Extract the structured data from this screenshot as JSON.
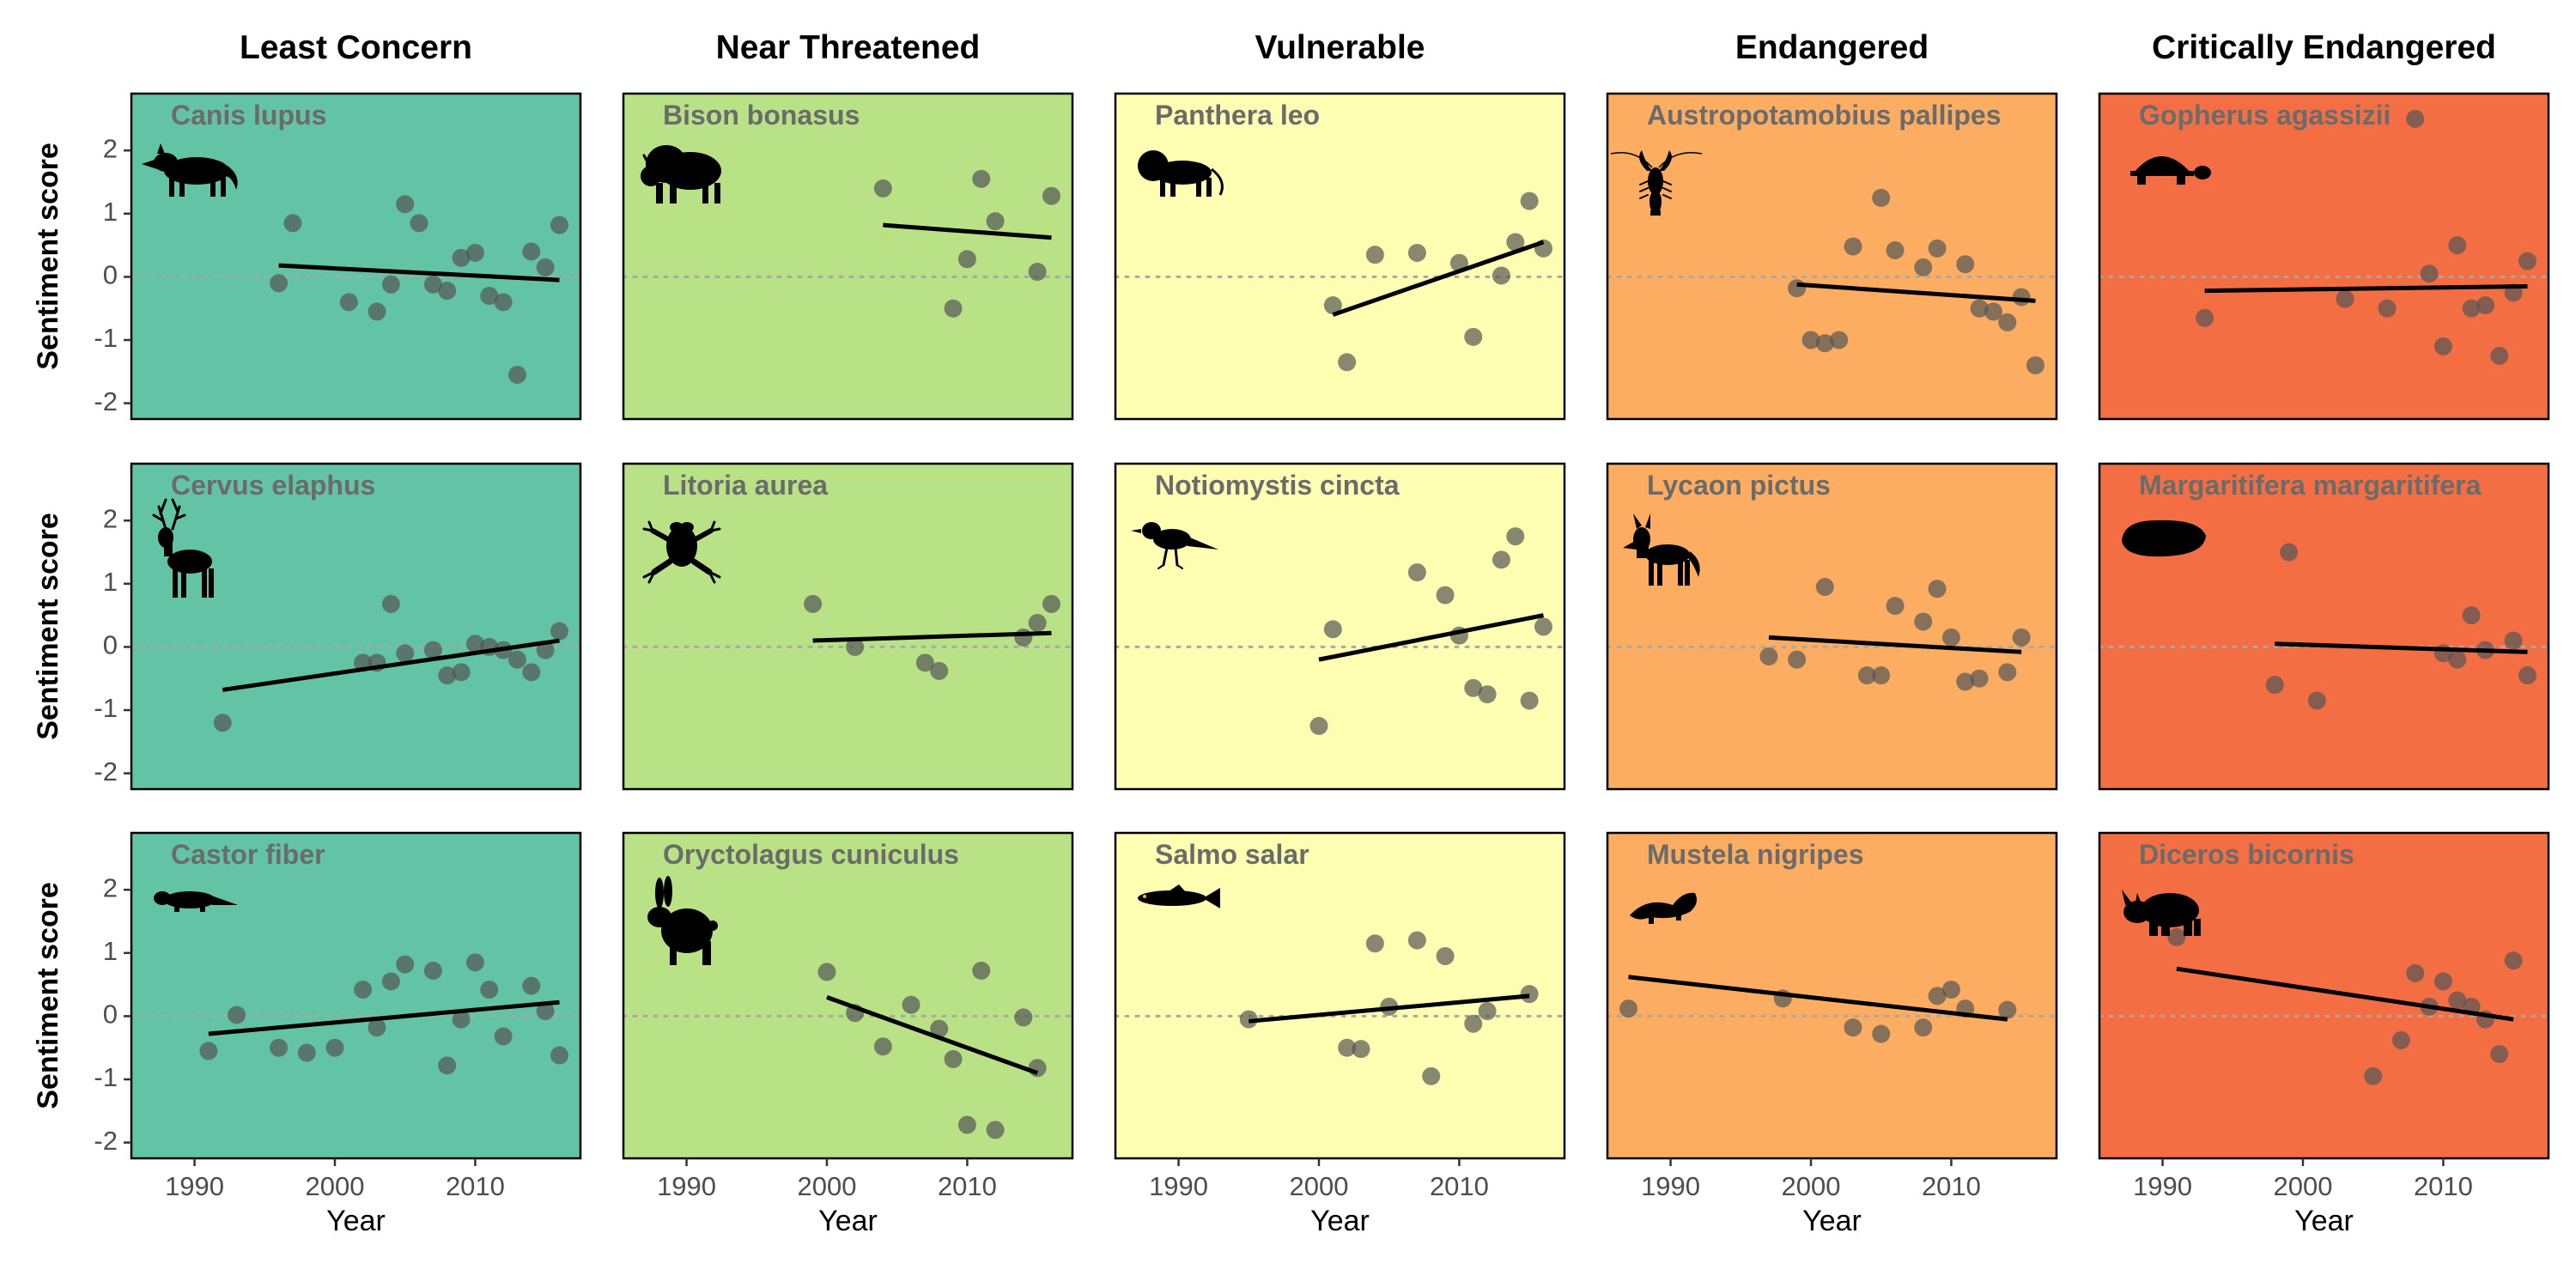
{
  "figure": {
    "ylabel": "Sentiment score",
    "xlabel": "Year",
    "columns": [
      "Least Concern",
      "Near Threatened",
      "Vulnerable",
      "Endangered",
      "Critically Endangered"
    ],
    "column_colors": [
      "#63c3a5",
      "#b9e286",
      "#feffb3",
      "#fcad62",
      "#f46e44"
    ],
    "xlim": [
      1985.5,
      2017.5
    ],
    "ylim": [
      -2.25,
      2.9
    ],
    "xticks": [
      1990,
      2000,
      2010
    ],
    "yticks": [
      -2,
      -1,
      0,
      1,
      2
    ],
    "reference_line_y": 0,
    "point_color": "#555555",
    "trend_color": "#000000"
  },
  "chart_data": [
    {
      "type": "scatter",
      "species": "Canis lupus",
      "status": "Least Concern",
      "icon": "wolf-icon",
      "x": [
        1996,
        1997,
        2001,
        2003,
        2004,
        2005,
        2006,
        2007,
        2008,
        2009,
        2010,
        2011,
        2012,
        2013,
        2014,
        2015,
        2016
      ],
      "y": [
        -0.1,
        0.85,
        -0.4,
        -0.55,
        -0.12,
        1.15,
        0.85,
        -0.12,
        -0.22,
        0.3,
        0.38,
        -0.3,
        -0.4,
        -1.55,
        0.4,
        0.15,
        0.82
      ],
      "trend": {
        "x": [
          1996,
          2016
        ],
        "y": [
          0.18,
          -0.05
        ]
      }
    },
    {
      "type": "scatter",
      "species": "Bison bonasus",
      "status": "Near Threatened",
      "icon": "bison-icon",
      "x": [
        2004,
        2009,
        2010,
        2011,
        2012,
        2015,
        2016
      ],
      "y": [
        1.4,
        -0.5,
        0.28,
        1.55,
        0.88,
        0.08,
        1.28
      ],
      "trend": {
        "x": [
          2004,
          2016
        ],
        "y": [
          0.82,
          0.62
        ]
      }
    },
    {
      "type": "scatter",
      "species": "Panthera leo",
      "status": "Vulnerable",
      "icon": "lion-icon",
      "x": [
        2001,
        2002,
        2004,
        2007,
        2010,
        2011,
        2013,
        2014,
        2015,
        2016
      ],
      "y": [
        -0.45,
        -1.35,
        0.35,
        0.38,
        0.22,
        -0.95,
        0.02,
        0.55,
        1.2,
        0.45
      ],
      "trend": {
        "x": [
          2001,
          2016
        ],
        "y": [
          -0.6,
          0.55
        ]
      }
    },
    {
      "type": "scatter",
      "species": "Austropotamobius pallipes",
      "status": "Endangered",
      "icon": "crayfish-icon",
      "x": [
        1999,
        2000,
        2001,
        2002,
        2003,
        2005,
        2006,
        2008,
        2009,
        2011,
        2012,
        2013,
        2014,
        2015,
        2016
      ],
      "y": [
        -0.18,
        -1.0,
        -1.05,
        -1.0,
        0.48,
        1.25,
        0.42,
        0.15,
        0.45,
        0.2,
        -0.5,
        -0.55,
        -0.72,
        -0.32,
        -1.4
      ],
      "trend": {
        "x": [
          1999,
          2016
        ],
        "y": [
          -0.12,
          -0.38
        ]
      }
    },
    {
      "type": "scatter",
      "species": "Gopherus agassizii",
      "status": "Critically Endangered",
      "icon": "tortoise-icon",
      "x": [
        1993,
        2003,
        2006,
        2008,
        2009,
        2010,
        2011,
        2012,
        2013,
        2014,
        2015,
        2016
      ],
      "y": [
        -0.65,
        -0.35,
        -0.5,
        2.5,
        0.05,
        -1.1,
        0.5,
        -0.5,
        -0.45,
        -1.25,
        -0.25,
        0.25
      ],
      "trend": {
        "x": [
          1993,
          2016
        ],
        "y": [
          -0.22,
          -0.15
        ]
      }
    },
    {
      "type": "scatter",
      "species": "Cervus elaphus",
      "status": "Least Concern",
      "icon": "deer-icon",
      "x": [
        1992,
        2002,
        2003,
        2004,
        2005,
        2007,
        2008,
        2009,
        2010,
        2011,
        2012,
        2013,
        2014,
        2015,
        2016
      ],
      "y": [
        -1.2,
        -0.25,
        -0.25,
        0.68,
        -0.1,
        -0.05,
        -0.45,
        -0.4,
        0.05,
        0.0,
        -0.05,
        -0.2,
        -0.4,
        -0.05,
        0.25
      ],
      "trend": {
        "x": [
          1992,
          2016
        ],
        "y": [
          -0.68,
          0.1
        ]
      }
    },
    {
      "type": "scatter",
      "species": "Litoria aurea",
      "status": "Near Threatened",
      "icon": "frog-icon",
      "x": [
        1999,
        2002,
        2007,
        2008,
        2014,
        2015,
        2016
      ],
      "y": [
        0.68,
        0.0,
        -0.25,
        -0.38,
        0.15,
        0.38,
        0.68
      ],
      "trend": {
        "x": [
          1999,
          2016
        ],
        "y": [
          0.1,
          0.22
        ]
      }
    },
    {
      "type": "scatter",
      "species": "Notiomystis cincta",
      "status": "Vulnerable",
      "icon": "bird-icon",
      "x": [
        2000,
        2001,
        2007,
        2009,
        2010,
        2011,
        2012,
        2013,
        2014,
        2015,
        2016
      ],
      "y": [
        -1.25,
        0.28,
        1.18,
        0.82,
        0.18,
        -0.65,
        -0.75,
        1.38,
        1.75,
        -0.85,
        0.32
      ],
      "trend": {
        "x": [
          2000,
          2016
        ],
        "y": [
          -0.2,
          0.5
        ]
      }
    },
    {
      "type": "scatter",
      "species": "Lycaon pictus",
      "status": "Endangered",
      "icon": "wild-dog-icon",
      "x": [
        1997,
        1999,
        2001,
        2004,
        2005,
        2006,
        2008,
        2009,
        2010,
        2011,
        2012,
        2014,
        2015
      ],
      "y": [
        -0.15,
        -0.2,
        0.95,
        -0.45,
        -0.45,
        0.65,
        0.4,
        0.92,
        0.15,
        -0.55,
        -0.5,
        -0.4,
        0.15
      ],
      "trend": {
        "x": [
          1997,
          2015
        ],
        "y": [
          0.15,
          -0.08
        ]
      }
    },
    {
      "type": "scatter",
      "species": "Margaritifera margaritifera",
      "status": "Critically Endangered",
      "icon": "mussel-icon",
      "x": [
        1998,
        1999,
        2001,
        2010,
        2011,
        2012,
        2013,
        2015,
        2016
      ],
      "y": [
        -0.6,
        1.5,
        -0.85,
        -0.1,
        -0.2,
        0.5,
        -0.05,
        0.1,
        -0.45
      ],
      "trend": {
        "x": [
          1998,
          2016
        ],
        "y": [
          0.05,
          -0.08
        ]
      }
    },
    {
      "type": "scatter",
      "species": "Castor fiber",
      "status": "Least Concern",
      "icon": "beaver-icon",
      "x": [
        1991,
        1993,
        1996,
        1998,
        2000,
        2002,
        2003,
        2004,
        2005,
        2007,
        2008,
        2009,
        2010,
        2011,
        2012,
        2014,
        2015,
        2016
      ],
      "y": [
        -0.55,
        0.02,
        -0.5,
        -0.58,
        -0.5,
        0.42,
        -0.18,
        0.55,
        0.82,
        0.72,
        -0.78,
        -0.05,
        0.85,
        0.42,
        -0.32,
        0.48,
        0.08,
        -0.62
      ],
      "trend": {
        "x": [
          1991,
          2016
        ],
        "y": [
          -0.28,
          0.22
        ]
      }
    },
    {
      "type": "scatter",
      "species": "Oryctolagus cuniculus",
      "status": "Near Threatened",
      "icon": "rabbit-icon",
      "x": [
        2000,
        2002,
        2004,
        2006,
        2008,
        2009,
        2010,
        2011,
        2012,
        2014,
        2015
      ],
      "y": [
        0.7,
        0.05,
        -0.48,
        0.18,
        -0.2,
        -0.68,
        -1.72,
        0.72,
        -1.8,
        -0.02,
        -0.82
      ],
      "trend": {
        "x": [
          2000,
          2015
        ],
        "y": [
          0.3,
          -0.9
        ]
      }
    },
    {
      "type": "scatter",
      "species": "Salmo salar",
      "status": "Vulnerable",
      "icon": "fish-icon",
      "x": [
        1995,
        2002,
        2003,
        2004,
        2005,
        2007,
        2008,
        2009,
        2011,
        2012,
        2015
      ],
      "y": [
        -0.05,
        -0.5,
        -0.52,
        1.15,
        0.15,
        1.2,
        -0.95,
        0.95,
        -0.12,
        0.08,
        0.35
      ],
      "trend": {
        "x": [
          1995,
          2015
        ],
        "y": [
          -0.08,
          0.32
        ]
      }
    },
    {
      "type": "scatter",
      "species": "Mustela nigripes",
      "status": "Endangered",
      "icon": "ferret-icon",
      "x": [
        1987,
        1998,
        2003,
        2005,
        2008,
        2009,
        2010,
        2011,
        2014
      ],
      "y": [
        0.12,
        0.28,
        -0.18,
        -0.28,
        -0.18,
        0.32,
        0.42,
        0.12,
        0.1
      ],
      "trend": {
        "x": [
          1987,
          2014
        ],
        "y": [
          0.62,
          -0.05
        ]
      }
    },
    {
      "type": "scatter",
      "species": "Diceros bicornis",
      "status": "Critically Endangered",
      "icon": "rhino-icon",
      "x": [
        1991,
        2005,
        2007,
        2008,
        2009,
        2010,
        2011,
        2012,
        2013,
        2014,
        2015
      ],
      "y": [
        1.25,
        -0.95,
        -0.38,
        0.68,
        0.15,
        0.55,
        0.25,
        0.15,
        -0.05,
        -0.6,
        0.88
      ],
      "trend": {
        "x": [
          1991,
          2015
        ],
        "y": [
          0.75,
          -0.05
        ]
      }
    }
  ]
}
